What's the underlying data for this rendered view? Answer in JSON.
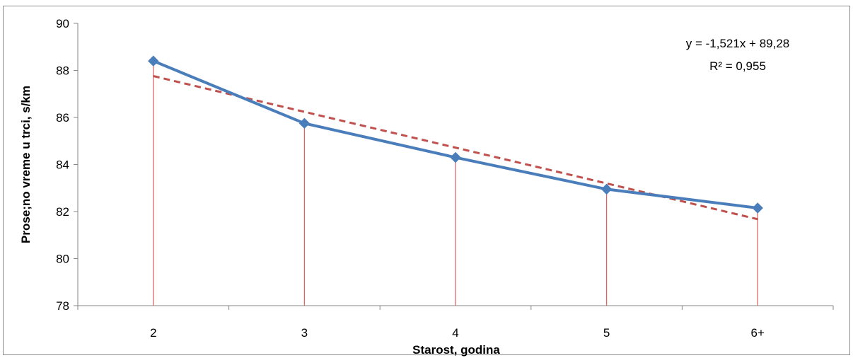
{
  "chart_data": {
    "type": "line",
    "categories": [
      "2",
      "3",
      "4",
      "5",
      "6+"
    ],
    "series": [
      {
        "values": [
          88.4,
          85.75,
          84.3,
          82.95,
          82.15
        ],
        "color": "#4a7ebb",
        "marker": "diamond"
      }
    ],
    "trendline": {
      "type": "linear",
      "slope": -1.521,
      "intercept": 89.28,
      "color": "#c0504d",
      "style": "dashed"
    },
    "drop_lines": {
      "color": "#e06666"
    },
    "equation_text": "y = -1,521x + 89,28",
    "r2_text": "R² = 0,955",
    "xlabel": "Starost, godina",
    "ylabel": "Prose;no vreme u trci, s/km",
    "ylim": [
      78,
      90
    ],
    "yticks": [
      "78",
      "80",
      "82",
      "84",
      "86",
      "88",
      "90"
    ],
    "grid": false,
    "legend": "none"
  }
}
